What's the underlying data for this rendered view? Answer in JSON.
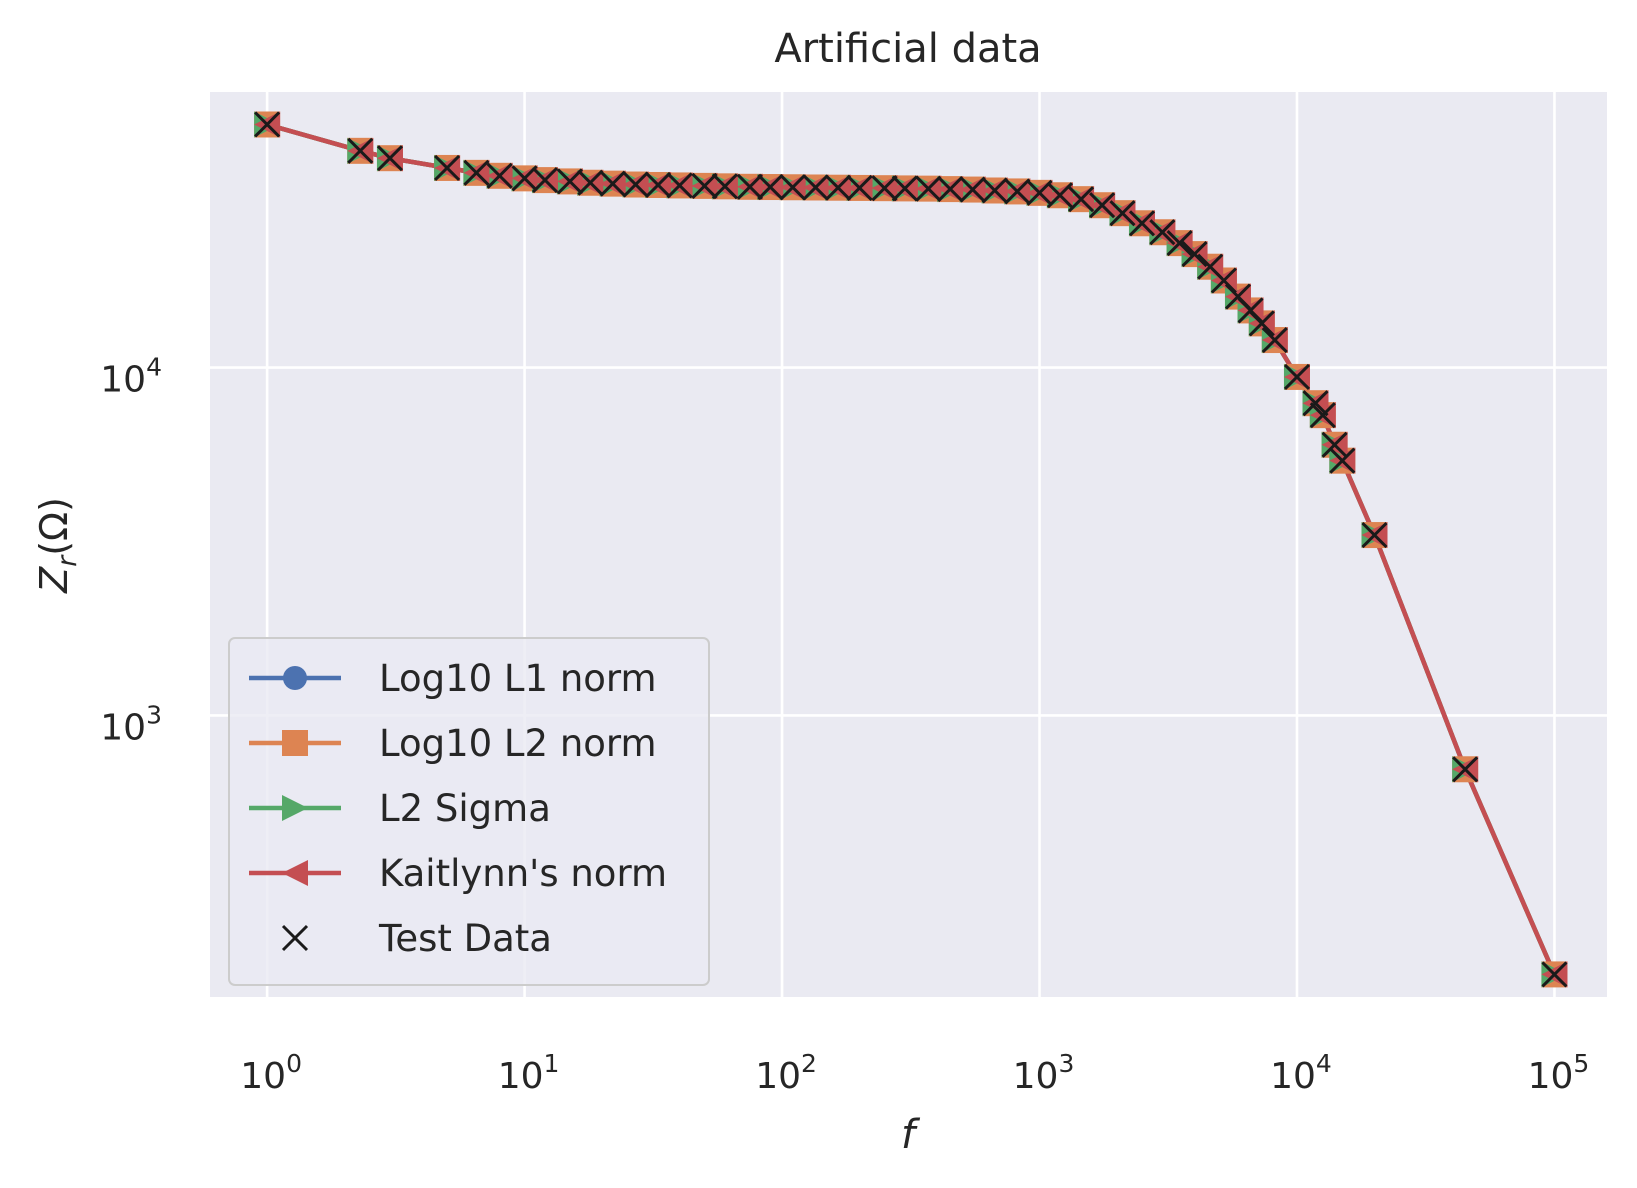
{
  "chart_data": {
    "type": "line",
    "title": "Artificial data",
    "xlabel": "f",
    "ylabel": "Z_r(Ω)",
    "ylabel_base": "Z",
    "ylabel_sub": "r",
    "ylabel_unit": "(Ω)",
    "x_scale": "log",
    "y_scale": "log",
    "xlim": [
      0.6,
      160000
    ],
    "ylim": [
      155,
      62000
    ],
    "x_ticks": [
      {
        "base": "10",
        "exp": "0",
        "value": 1
      },
      {
        "base": "10",
        "exp": "1",
        "value": 10
      },
      {
        "base": "10",
        "exp": "2",
        "value": 100
      },
      {
        "base": "10",
        "exp": "3",
        "value": 1000
      },
      {
        "base": "10",
        "exp": "4",
        "value": 10000
      },
      {
        "base": "10",
        "exp": "5",
        "value": 100000
      }
    ],
    "y_ticks": [
      {
        "base": "10",
        "exp": "3",
        "value": 1000
      },
      {
        "base": "10",
        "exp": "4",
        "value": 10000
      }
    ],
    "grid": true,
    "legend_position": "lower-left",
    "colors": {
      "background": "#eaeaf2",
      "grid": "#ffffff",
      "log10_l1": "#4c72b0",
      "log10_l2": "#dd8452",
      "l2_sigma": "#55a868",
      "kaitlynn": "#c44e52",
      "test": "#1a1a1a"
    },
    "x": [
      1,
      2.3,
      3,
      5,
      6.5,
      8,
      10,
      12,
      15,
      18,
      22,
      27,
      33,
      40,
      50,
      60,
      75,
      90,
      110,
      135,
      165,
      200,
      250,
      300,
      370,
      450,
      550,
      670,
      820,
      1000,
      1200,
      1450,
      1750,
      2100,
      2500,
      3000,
      3500,
      4000,
      4600,
      5200,
      5900,
      6600,
      7300,
      8200,
      10000,
      11800,
      12600,
      14000,
      15000,
      20000,
      45000,
      100000
    ],
    "series": [
      {
        "name": "Log10 L1 norm",
        "marker": "circle",
        "values": [
          50000,
          42000,
          40000,
          37500,
          36300,
          35600,
          35000,
          34600,
          34300,
          34000,
          33800,
          33600,
          33500,
          33400,
          33300,
          33200,
          33100,
          33050,
          33000,
          32950,
          32900,
          32850,
          32800,
          32750,
          32700,
          32600,
          32500,
          32300,
          32100,
          31800,
          31300,
          30500,
          29300,
          27800,
          26000,
          24500,
          22800,
          21200,
          19500,
          17800,
          16000,
          14600,
          13400,
          12000,
          9400,
          7900,
          7300,
          6000,
          5400,
          3300,
          700,
          180
        ]
      },
      {
        "name": "Log10 L2 norm",
        "marker": "square",
        "values": [
          50000,
          42000,
          40000,
          37500,
          36300,
          35600,
          35000,
          34600,
          34300,
          34000,
          33800,
          33600,
          33500,
          33400,
          33300,
          33200,
          33100,
          33050,
          33000,
          32950,
          32900,
          32850,
          32800,
          32750,
          32700,
          32600,
          32500,
          32300,
          32100,
          31800,
          31300,
          30500,
          29300,
          27800,
          26000,
          24500,
          22800,
          21200,
          19500,
          17800,
          16000,
          14600,
          13400,
          12000,
          9400,
          7900,
          7300,
          6000,
          5400,
          3300,
          700,
          180
        ]
      },
      {
        "name": "L2 Sigma",
        "marker": "triangle-right",
        "values": [
          50000,
          42000,
          40000,
          37500,
          36300,
          35600,
          35000,
          34600,
          34300,
          34000,
          33800,
          33600,
          33500,
          33400,
          33300,
          33200,
          33100,
          33050,
          33000,
          32950,
          32900,
          32850,
          32800,
          32750,
          32700,
          32600,
          32500,
          32300,
          32100,
          31800,
          31300,
          30500,
          29300,
          27800,
          26000,
          24500,
          22800,
          21200,
          19500,
          17800,
          16000,
          14600,
          13400,
          12000,
          9400,
          7900,
          7300,
          6000,
          5400,
          3300,
          700,
          180
        ]
      },
      {
        "name": "Kaitlynn's norm",
        "marker": "triangle-left",
        "values": [
          50000,
          42000,
          40000,
          37500,
          36300,
          35600,
          35000,
          34600,
          34300,
          34000,
          33800,
          33600,
          33500,
          33400,
          33300,
          33200,
          33100,
          33050,
          33000,
          32950,
          32900,
          32850,
          32800,
          32750,
          32700,
          32600,
          32500,
          32300,
          32100,
          31800,
          31300,
          30500,
          29300,
          27800,
          26000,
          24500,
          22800,
          21200,
          19500,
          17800,
          16000,
          14600,
          13400,
          12000,
          9400,
          7900,
          7300,
          6000,
          5400,
          3300,
          700,
          180
        ]
      },
      {
        "name": "Test Data",
        "marker": "x",
        "line": false,
        "values": [
          50000,
          42000,
          40000,
          37500,
          36300,
          35600,
          35000,
          34600,
          34300,
          34000,
          33800,
          33600,
          33500,
          33400,
          33300,
          33200,
          33100,
          33050,
          33000,
          32950,
          32900,
          32850,
          32800,
          32750,
          32700,
          32600,
          32500,
          32300,
          32100,
          31800,
          31300,
          30500,
          29300,
          27800,
          26000,
          24500,
          22800,
          21200,
          19500,
          17800,
          16000,
          14600,
          13400,
          12000,
          9400,
          7900,
          7300,
          6000,
          5400,
          3300,
          700,
          180
        ]
      }
    ]
  }
}
